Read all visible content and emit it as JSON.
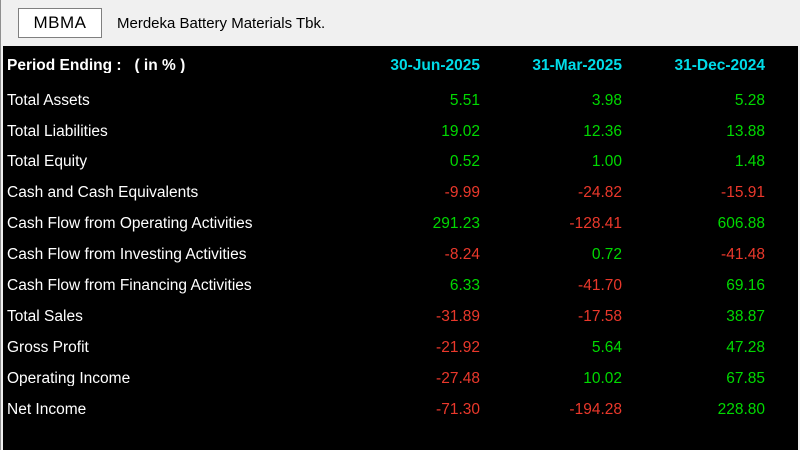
{
  "ticker_bar": {
    "ticker": "MBMA",
    "company_name": "Merdeka Battery Materials Tbk."
  },
  "table": {
    "header_label": "Period Ending :   ( in % )",
    "columns": [
      "30-Jun-2025",
      "31-Mar-2025",
      "31-Dec-2024"
    ],
    "rows": [
      {
        "label": "Total Assets",
        "values": [
          "5.51",
          "3.98",
          "5.28"
        ]
      },
      {
        "label": "Total Liabilities",
        "values": [
          "19.02",
          "12.36",
          "13.88"
        ]
      },
      {
        "label": "Total Equity",
        "values": [
          "0.52",
          "1.00",
          "1.48"
        ]
      },
      {
        "label": "Cash and Cash Equivalents",
        "values": [
          "-9.99",
          "-24.82",
          "-15.91"
        ]
      },
      {
        "label": "Cash Flow from Operating Activities",
        "values": [
          "291.23",
          "-128.41",
          "606.88"
        ]
      },
      {
        "label": "Cash Flow from Investing Activities",
        "values": [
          "-8.24",
          "0.72",
          "-41.48"
        ]
      },
      {
        "label": "Cash Flow from Financing Activities",
        "values": [
          "6.33",
          "-41.70",
          "69.16"
        ]
      },
      {
        "label": "Total Sales",
        "values": [
          "-31.89",
          "-17.58",
          "38.87"
        ]
      },
      {
        "label": "Gross Profit",
        "values": [
          "-21.92",
          "5.64",
          "47.28"
        ]
      },
      {
        "label": "Operating Income",
        "values": [
          "-27.48",
          "10.02",
          "67.85"
        ]
      },
      {
        "label": "Net Income",
        "values": [
          "-71.30",
          "-194.28",
          "228.80"
        ]
      }
    ]
  },
  "colors": {
    "positive": "#00d900",
    "negative": "#ea382b",
    "header_date": "#00dce8",
    "header_text": "#ffffff"
  }
}
